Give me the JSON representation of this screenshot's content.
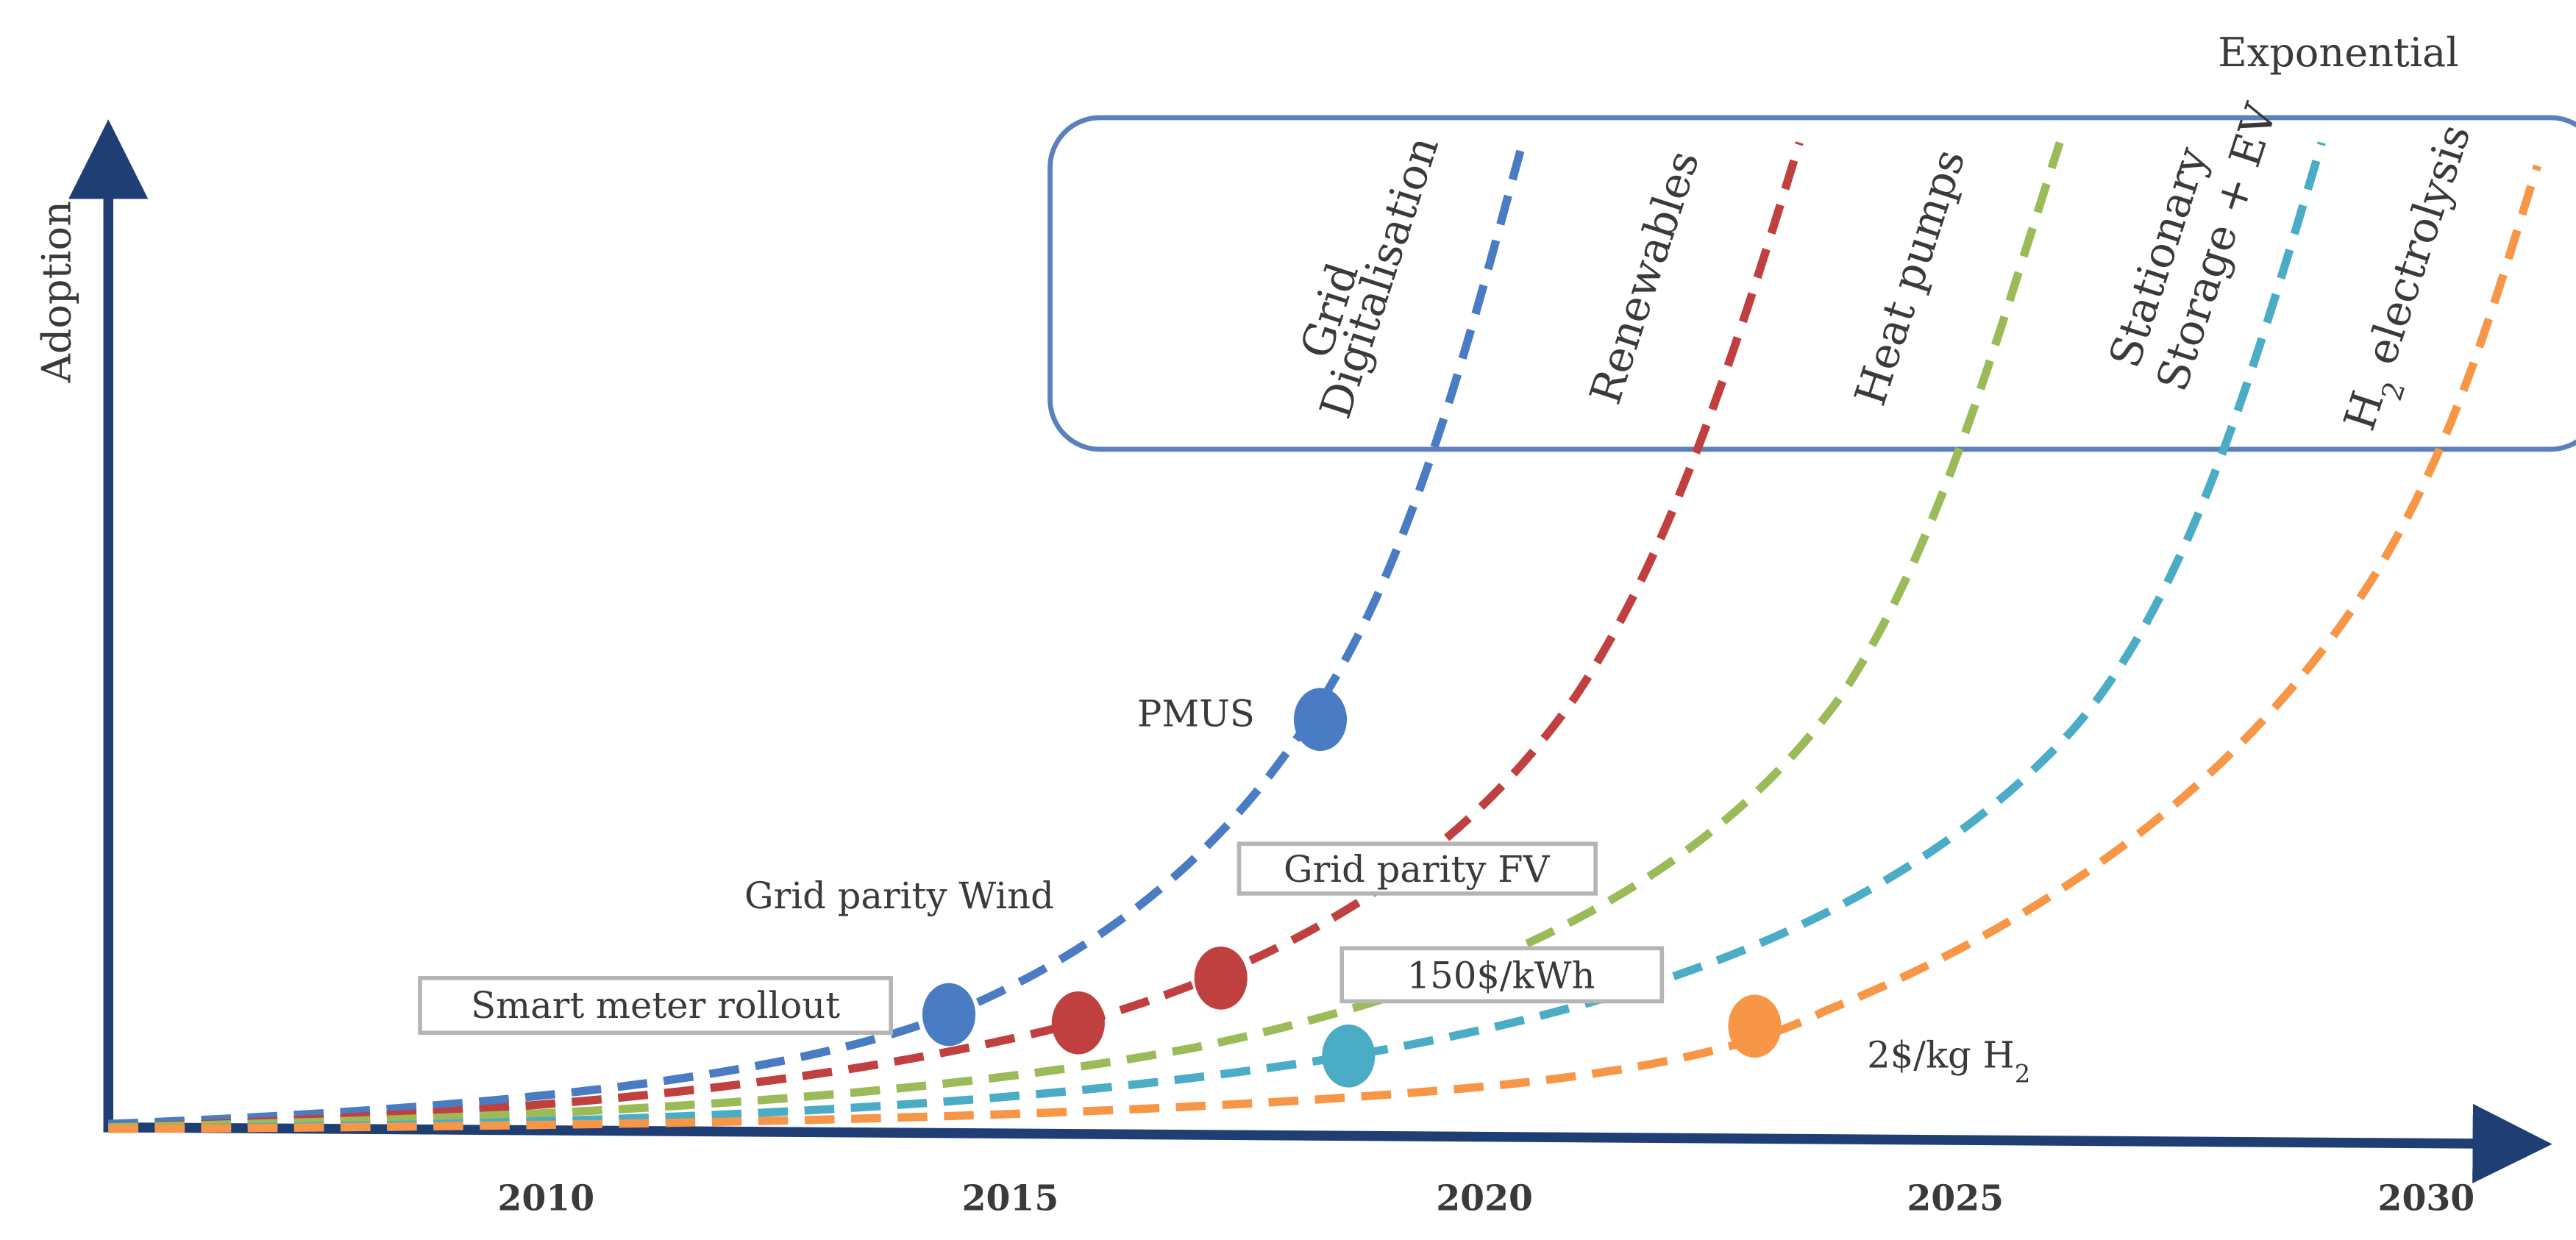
{
  "diagram": {
    "y_axis_label": "Adoption",
    "top_box_label": "Exponential",
    "x_ticks": [
      "2010",
      "2015",
      "2020",
      "2025",
      "2030"
    ],
    "curves": [
      {
        "id": "grid",
        "name": [
          "Grid",
          "Digitalisation"
        ],
        "color": "#4a7cc4"
      },
      {
        "id": "renew",
        "name": [
          "Renewables"
        ],
        "color": "#c0403f"
      },
      {
        "id": "heat",
        "name": [
          "Heat pumps"
        ],
        "color": "#9bbb59"
      },
      {
        "id": "storage",
        "name": [
          "Stationary",
          "Storage + EV"
        ],
        "color": "#4bacc6"
      },
      {
        "id": "h2",
        "name_main": "H",
        "name_sub": "2",
        "name_rest": " electrolysis",
        "color": "#f79646"
      }
    ],
    "milestones": {
      "smart_meter": "Smart meter rollout",
      "grid_parity_wind": "Grid parity Wind",
      "pmus": "PMUS",
      "grid_parity_fv": "Grid parity FV",
      "battery_cost": "150$/kWh",
      "h2_cost_main": "2$/kg H",
      "h2_cost_sub": "2"
    }
  }
}
